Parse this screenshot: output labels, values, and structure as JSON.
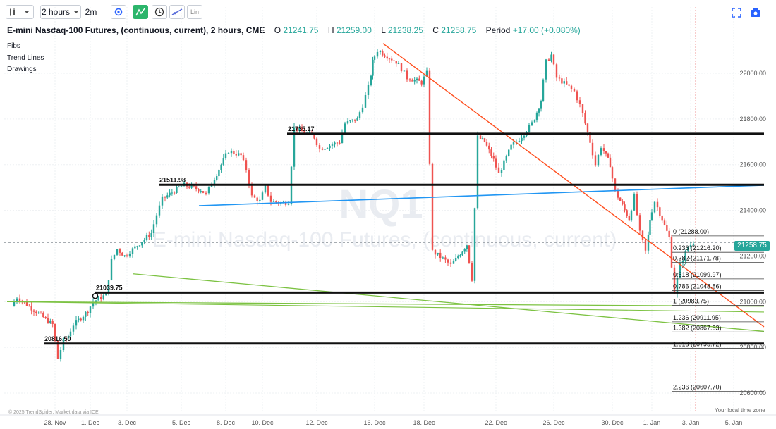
{
  "toolbar": {
    "bars_icon": "candlestick-icon",
    "interval": "2 hours",
    "update": "2m",
    "scale_label": "Lin"
  },
  "header": {
    "title": "E-mini Nasdaq-100 Futures, (continuous, current), 2 hours, CME",
    "o_label": "O",
    "o_value": "21241.75",
    "h_label": "H",
    "h_value": "21259.00",
    "l_label": "L",
    "l_value": "21238.25",
    "c_label": "C",
    "c_value": "21258.75",
    "period_label": "Period",
    "period_value": "+17.00 (+0.080%)"
  },
  "side_menu": [
    "Fibs",
    "Trend Lines",
    "Drawings"
  ],
  "watermark": {
    "symbol": "NQ1",
    "name": "E-mini Nasdaq-100 Futures, (continuous, current)"
  },
  "credit": "© 2025 TrendSpider. Market data via ICE",
  "timezone_note": "Your local time zone",
  "current_price": "21258.75",
  "colors": {
    "up": "#26a69a",
    "down": "#ef5350",
    "level": "#111111",
    "blue_trend": "#2196f3",
    "green_trend": "#7cc242",
    "red_trend": "#ff4f1f"
  },
  "chart_data": {
    "type": "candlestick",
    "y_ticks": [
      "22000.00",
      "21800.00",
      "21600.00",
      "21400.00",
      "21200.00",
      "21000.00",
      "20800.00",
      "20600.00"
    ],
    "x_ticks": [
      "28. Nov",
      "1. Dec",
      "3. Dec",
      "5. Dec",
      "8. Dec",
      "10. Dec",
      "12. Dec",
      "16. Dec",
      "18. Dec",
      "22. Dec",
      "26. Dec",
      "30. Dec",
      "1. Jan",
      "3. Jan",
      "5. Jan"
    ],
    "ylim": [
      20540,
      22140
    ],
    "horizontal_levels": [
      {
        "price": 21735.17,
        "label": "21735.17"
      },
      {
        "price": 21511.98,
        "label": "21511.98"
      },
      {
        "price": 21039.75,
        "label": "21039.75"
      },
      {
        "price": 20816.5,
        "label": "20816.50"
      }
    ],
    "fib_levels": [
      {
        "ratio": "0",
        "price": 21288.0,
        "label": "0 (21288.00)"
      },
      {
        "ratio": "0.236",
        "price": 21216.2,
        "label": "0.236 (21216.20)"
      },
      {
        "ratio": "0.382",
        "price": 21171.78,
        "label": "0.382 (21171.78)"
      },
      {
        "ratio": "0.618",
        "price": 21099.97,
        "label": "0.618 (21099.97)"
      },
      {
        "ratio": "0.786",
        "price": 21048.86,
        "label": "0.786 (21048.86)"
      },
      {
        "ratio": "1",
        "price": 20983.75,
        "label": "1 (20983.75)"
      },
      {
        "ratio": "1.236",
        "price": 20911.95,
        "label": "1.236 (20911.95)"
      },
      {
        "ratio": "1.382",
        "price": 20867.53,
        "label": "1.382 (20867.53)"
      },
      {
        "ratio": "1.618",
        "price": 20795.72,
        "label": "1.618 (20795.72)"
      },
      {
        "ratio": "2.236",
        "price": 20607.7,
        "label": "2.236 (20607.70)"
      }
    ],
    "path_points": [
      [
        "27. Nov",
        20980
      ],
      [
        "27. Nov",
        21020
      ],
      [
        "28. Nov",
        20900
      ],
      [
        "28. Nov",
        20750
      ],
      [
        "28. Nov",
        20830
      ],
      [
        "29. Nov",
        20850
      ],
      [
        "29. Nov",
        20900
      ],
      [
        "1. Dec",
        20960
      ],
      [
        "1. Dec",
        21000
      ],
      [
        "2. Dec",
        21030
      ],
      [
        "2. Dec",
        21180
      ],
      [
        "2. Dec",
        21230
      ],
      [
        "3. Dec",
        21200
      ],
      [
        "3. Dec",
        21220
      ],
      [
        "4. Dec",
        21300
      ],
      [
        "4. Dec",
        21380
      ],
      [
        "4. Dec",
        21450
      ],
      [
        "5. Dec",
        21500
      ],
      [
        "5. Dec",
        21510
      ],
      [
        "6. Dec",
        21490
      ],
      [
        "6. Dec",
        21470
      ],
      [
        "6. Dec",
        21520
      ],
      [
        "8. Dec",
        21620
      ],
      [
        "8. Dec",
        21660
      ],
      [
        "9. Dec",
        21640
      ],
      [
        "9. Dec",
        21580
      ],
      [
        "9. Dec",
        21460
      ],
      [
        "10. Dec",
        21440
      ],
      [
        "10. Dec",
        21500
      ],
      [
        "10. Dec",
        21440
      ],
      [
        "11. Dec",
        21430
      ],
      [
        "11. Dec",
        21440
      ],
      [
        "11. Dec",
        21760
      ],
      [
        "12. Dec",
        21720
      ],
      [
        "12. Dec",
        21670
      ],
      [
        "13. Dec",
        21700
      ],
      [
        "13. Dec",
        21780
      ],
      [
        "15. Dec",
        21800
      ],
      [
        "15. Dec",
        21860
      ],
      [
        "15. Dec",
        21940
      ],
      [
        "16. Dec",
        22050
      ],
      [
        "16. Dec",
        22100
      ],
      [
        "17. Dec",
        22050
      ],
      [
        "17. Dec",
        22020
      ],
      [
        "17. Dec",
        21980
      ],
      [
        "18. Dec",
        21960
      ],
      [
        "18. Dec",
        22000
      ],
      [
        "18. Dec",
        21220
      ],
      [
        "19. Dec",
        21180
      ],
      [
        "19. Dec",
        21160
      ],
      [
        "20. Dec",
        21250
      ],
      [
        "20. Dec",
        21100
      ],
      [
        "20. Dec",
        21720
      ],
      [
        "21. Dec",
        21700
      ],
      [
        "22. Dec",
        21620
      ],
      [
        "22. Dec",
        21560
      ],
      [
        "23. Dec",
        21680
      ],
      [
        "23. Dec",
        21700
      ],
      [
        "24. Dec",
        21750
      ],
      [
        "24. Dec",
        21780
      ],
      [
        "25. Dec",
        21880
      ],
      [
        "25. Dec",
        22050
      ],
      [
        "26. Dec",
        22080
      ],
      [
        "26. Dec",
        21980
      ],
      [
        "27. Dec",
        21940
      ],
      [
        "27. Dec",
        21920
      ],
      [
        "28. Dec",
        21860
      ],
      [
        "29. Dec",
        21700
      ],
      [
        "29. Dec",
        21600
      ],
      [
        "29. Dec",
        21680
      ],
      [
        "30. Dec",
        21600
      ],
      [
        "30. Dec",
        21480
      ],
      [
        "31. Dec",
        21360
      ],
      [
        "31. Dec",
        21460
      ],
      [
        "31. Dec",
        21300
      ],
      [
        "31. Dec",
        21220
      ],
      [
        "1. Jan",
        21360
      ],
      [
        "1. Jan",
        21440
      ],
      [
        "2. Jan",
        21280
      ],
      [
        "2. Jan",
        21040
      ],
      [
        "2. Jan",
        21160
      ],
      [
        "3. Jan",
        21240
      ],
      [
        "3. Jan",
        21259
      ]
    ]
  }
}
